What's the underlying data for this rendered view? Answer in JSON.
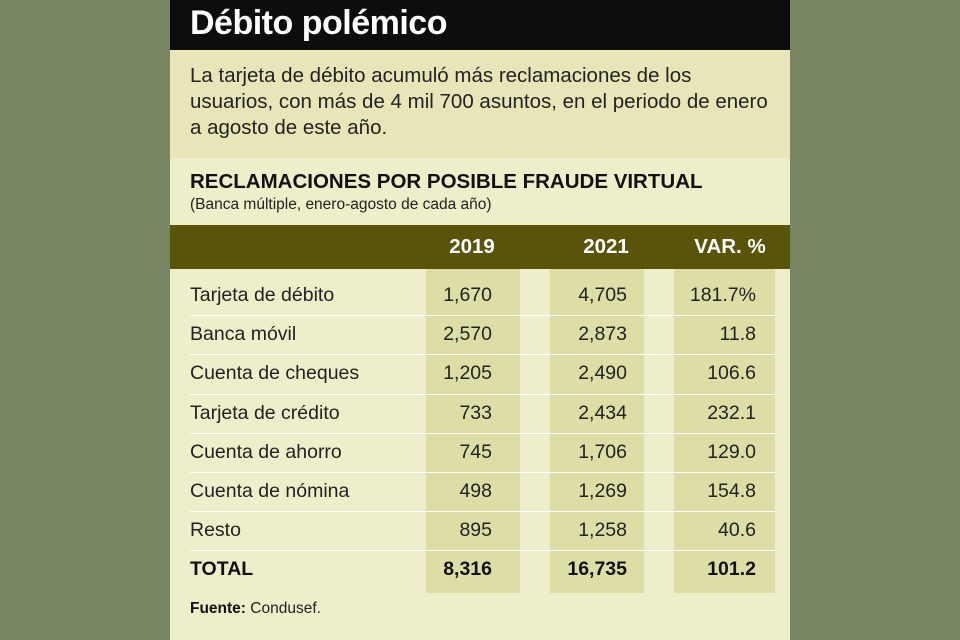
{
  "title": "Débito polémico",
  "intro": "La tarjeta de débito acumuló más reclamaciones de los usuarios, con más de 4 mil 700 asuntos, en el periodo de enero a agosto de este año.",
  "table_title": "RECLAMACIONES POR POSIBLE FRAUDE VIRTUAL",
  "table_subtitle": "(Banca múltiple, enero-agosto de cada año)",
  "columns": [
    "2019",
    "2021",
    "VAR. %"
  ],
  "rows": [
    {
      "label": "Tarjeta de débito",
      "v2019": "1,670",
      "v2021": "4,705",
      "var": "181.7%"
    },
    {
      "label": "Banca móvil",
      "v2019": "2,570",
      "v2021": "2,873",
      "var": "11.8"
    },
    {
      "label": "Cuenta de cheques",
      "v2019": "1,205",
      "v2021": "2,490",
      "var": "106.6"
    },
    {
      "label": "Tarjeta de crédito",
      "v2019": "733",
      "v2021": "2,434",
      "var": "232.1"
    },
    {
      "label": "Cuenta de ahorro",
      "v2019": "745",
      "v2021": "1,706",
      "var": "129.0"
    },
    {
      "label": "Cuenta de nómina",
      "v2019": "498",
      "v2021": "1,269",
      "var": "154.8"
    },
    {
      "label": "Resto",
      "v2019": "895",
      "v2021": "1,258",
      "var": "40.6"
    }
  ],
  "total": {
    "label": "TOTAL",
    "v2019": "8,316",
    "v2021": "16,735",
    "var": "101.2"
  },
  "source_label": "Fuente:",
  "source_value": "Condusef."
}
